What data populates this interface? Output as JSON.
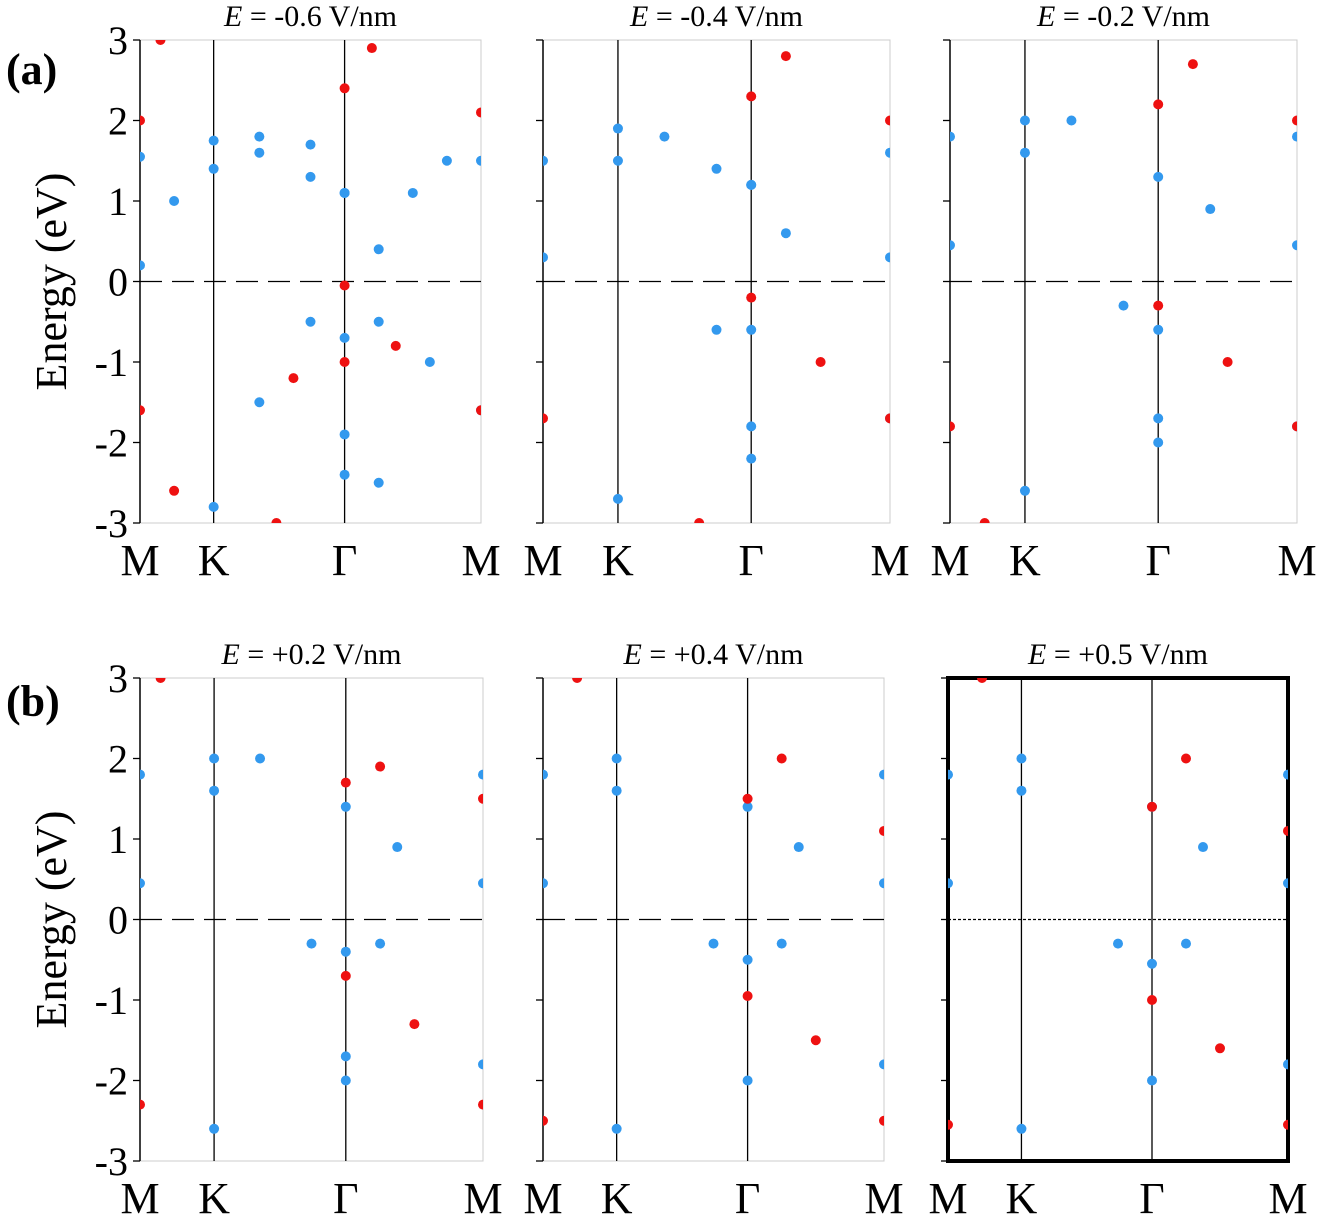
{
  "figure": {
    "row_labels": [
      "(a)",
      "(b)"
    ],
    "colors": {
      "blue": "#3399ee",
      "red": "#ee1111",
      "axis": "#000000",
      "frame": "#cccccc"
    }
  },
  "chart_data": [
    {
      "type": "scatter",
      "panel": "a1",
      "title_var": "E",
      "title_value": " = -0.6 V/nm",
      "ylabel": "Energy (eV)",
      "xticks": [
        "M",
        "K",
        "Γ",
        "M"
      ],
      "yticks": [
        "-3",
        "-2",
        "-1",
        "0",
        "1",
        "2",
        "3"
      ],
      "ylim": [
        -3,
        3
      ],
      "fermi_level": 0,
      "highlighted": false,
      "series": [
        {
          "color": "blue",
          "points": [
            [
              0,
              0.2
            ],
            [
              0.1,
              1.0
            ],
            [
              0.216,
              1.4
            ],
            [
              0.35,
              1.6
            ],
            [
              0.5,
              1.3
            ],
            [
              0.6,
              1.1
            ],
            [
              0.7,
              0.4
            ],
            [
              0.8,
              1.1
            ],
            [
              0.9,
              1.5
            ],
            [
              1,
              1.5
            ],
            [
              0,
              1.55
            ],
            [
              0.216,
              1.75
            ],
            [
              0.35,
              1.8
            ],
            [
              0.5,
              1.7
            ],
            [
              0.6,
              1.1
            ],
            [
              0.216,
              -2.8
            ],
            [
              0.35,
              -1.5
            ],
            [
              0.5,
              -0.5
            ],
            [
              0.6,
              -0.7
            ],
            [
              0.7,
              -0.5
            ],
            [
              0.85,
              -1.0
            ],
            [
              1,
              -1.6
            ],
            [
              0.6,
              -2.4
            ],
            [
              0.6,
              -1.9
            ],
            [
              0.7,
              -2.5
            ]
          ]
        },
        {
          "color": "red",
          "points": [
            [
              0,
              2.0
            ],
            [
              0.06,
              3.0
            ],
            [
              0.6,
              2.4
            ],
            [
              0.68,
              2.9
            ],
            [
              1,
              2.1
            ],
            [
              0.45,
              -1.2
            ],
            [
              0.6,
              -0.05
            ],
            [
              0.75,
              -0.8
            ],
            [
              1,
              -1.6
            ],
            [
              0,
              -1.6
            ],
            [
              0.1,
              -2.6
            ],
            [
              0.4,
              -3.0
            ],
            [
              0.6,
              -1.0
            ]
          ]
        }
      ]
    },
    {
      "type": "scatter",
      "panel": "a2",
      "title_var": "E",
      "title_value": " = -0.4 V/nm",
      "xticks": [
        "M",
        "K",
        "Γ",
        "M"
      ],
      "ylim": [
        -3,
        3
      ],
      "fermi_level": 0,
      "highlighted": false,
      "series": [
        {
          "color": "blue",
          "points": [
            [
              0,
              0.3
            ],
            [
              0.216,
              1.5
            ],
            [
              0.35,
              1.8
            ],
            [
              0.5,
              1.4
            ],
            [
              0.6,
              1.2
            ],
            [
              0.7,
              0.6
            ],
            [
              1,
              0.3
            ],
            [
              0,
              1.5
            ],
            [
              0.216,
              1.9
            ],
            [
              0.6,
              1.2
            ],
            [
              1,
              1.6
            ],
            [
              0.216,
              -2.7
            ],
            [
              0.5,
              -0.6
            ],
            [
              0.6,
              -0.6
            ],
            [
              1,
              -1.7
            ],
            [
              0.6,
              -2.2
            ],
            [
              0.6,
              -1.8
            ]
          ]
        },
        {
          "color": "red",
          "points": [
            [
              0.6,
              2.3
            ],
            [
              0.7,
              2.8
            ],
            [
              1,
              2.0
            ],
            [
              0.6,
              -0.2
            ],
            [
              0.8,
              -1.0
            ],
            [
              1,
              -1.7
            ],
            [
              0,
              -1.7
            ],
            [
              0.45,
              -3.0
            ]
          ]
        }
      ]
    },
    {
      "type": "scatter",
      "panel": "a3",
      "title_var": "E",
      "title_value": " = -0.2 V/nm",
      "xticks": [
        "M",
        "K",
        "Γ",
        "M"
      ],
      "ylim": [
        -3,
        3
      ],
      "fermi_level": 0,
      "highlighted": false,
      "series": [
        {
          "color": "blue",
          "points": [
            [
              0,
              0.45
            ],
            [
              0.216,
              1.6
            ],
            [
              0.35,
              2.0
            ],
            [
              0.6,
              1.3
            ],
            [
              0.75,
              0.9
            ],
            [
              1,
              0.45
            ],
            [
              0,
              1.8
            ],
            [
              0.216,
              2.0
            ],
            [
              1,
              1.8
            ],
            [
              0.216,
              -2.6
            ],
            [
              0.5,
              -0.3
            ],
            [
              0.6,
              -0.6
            ],
            [
              1,
              -1.8
            ],
            [
              0.6,
              -2.0
            ],
            [
              0.6,
              -1.7
            ]
          ]
        },
        {
          "color": "red",
          "points": [
            [
              0.6,
              2.2
            ],
            [
              0.7,
              2.7
            ],
            [
              1,
              2.0
            ],
            [
              0.6,
              -0.3
            ],
            [
              0.8,
              -1.0
            ],
            [
              1,
              -1.8
            ],
            [
              0,
              -1.8
            ],
            [
              0.1,
              -3.0
            ]
          ]
        }
      ]
    },
    {
      "type": "scatter",
      "panel": "b1",
      "title_var": "E",
      "title_value": " = +0.2 V/nm",
      "ylabel": "Energy (eV)",
      "xticks": [
        "M",
        "K",
        "Γ",
        "M"
      ],
      "yticks": [
        "-3",
        "-2",
        "-1",
        "0",
        "1",
        "2",
        "3"
      ],
      "ylim": [
        -3,
        3
      ],
      "fermi_level": 0,
      "highlighted": false,
      "series": [
        {
          "color": "blue",
          "points": [
            [
              0,
              0.45
            ],
            [
              0.216,
              1.6
            ],
            [
              0.35,
              2.0
            ],
            [
              0.6,
              1.4
            ],
            [
              0.75,
              0.9
            ],
            [
              1,
              0.45
            ],
            [
              0,
              1.8
            ],
            [
              0.216,
              2.0
            ],
            [
              1,
              1.8
            ],
            [
              0.216,
              -2.6
            ],
            [
              0.5,
              -0.3
            ],
            [
              0.6,
              -0.4
            ],
            [
              0.7,
              -0.3
            ],
            [
              1,
              -1.8
            ],
            [
              0.6,
              -2.0
            ],
            [
              0.6,
              -1.7
            ]
          ]
        },
        {
          "color": "red",
          "points": [
            [
              0.6,
              1.7
            ],
            [
              0.7,
              1.9
            ],
            [
              1,
              1.5
            ],
            [
              0.6,
              -0.7
            ],
            [
              0.8,
              -1.3
            ],
            [
              1,
              -2.3
            ],
            [
              0,
              -2.3
            ],
            [
              0.06,
              3.0
            ]
          ]
        }
      ]
    },
    {
      "type": "scatter",
      "panel": "b2",
      "title_var": "E",
      "title_value": " = +0.4 V/nm",
      "xticks": [
        "M",
        "K",
        "Γ",
        "M"
      ],
      "ylim": [
        -3,
        3
      ],
      "fermi_level": 0,
      "highlighted": false,
      "series": [
        {
          "color": "blue",
          "points": [
            [
              0,
              0.45
            ],
            [
              0.216,
              1.6
            ],
            [
              0.6,
              1.4
            ],
            [
              0.75,
              0.9
            ],
            [
              1,
              0.45
            ],
            [
              0,
              1.8
            ],
            [
              0.216,
              2.0
            ],
            [
              1,
              1.8
            ],
            [
              0.216,
              -2.6
            ],
            [
              0.5,
              -0.3
            ],
            [
              0.6,
              -0.5
            ],
            [
              0.7,
              -0.3
            ],
            [
              1,
              -1.8
            ],
            [
              0.6,
              -2.0
            ]
          ]
        },
        {
          "color": "red",
          "points": [
            [
              0.6,
              1.5
            ],
            [
              0.7,
              2.0
            ],
            [
              1,
              1.1
            ],
            [
              0.6,
              -0.95
            ],
            [
              0.8,
              -1.5
            ],
            [
              1,
              -2.5
            ],
            [
              0,
              -2.5
            ],
            [
              0.1,
              3.0
            ]
          ]
        }
      ]
    },
    {
      "type": "scatter",
      "panel": "b3",
      "title_var": "E",
      "title_value": " = +0.5 V/nm",
      "xticks": [
        "M",
        "K",
        "Γ",
        "M"
      ],
      "ylim": [
        -3,
        3
      ],
      "fermi_level": 0,
      "highlighted": true,
      "series": [
        {
          "color": "blue",
          "points": [
            [
              0,
              0.45
            ],
            [
              0.216,
              1.6
            ],
            [
              0.6,
              1.4
            ],
            [
              0.75,
              0.9
            ],
            [
              1,
              0.45
            ],
            [
              0,
              1.8
            ],
            [
              0.216,
              2.0
            ],
            [
              1,
              1.8
            ],
            [
              0.216,
              -2.6
            ],
            [
              0.5,
              -0.3
            ],
            [
              0.6,
              -0.55
            ],
            [
              0.7,
              -0.3
            ],
            [
              1,
              -1.8
            ],
            [
              0.6,
              -2.0
            ]
          ]
        },
        {
          "color": "red",
          "points": [
            [
              0.6,
              1.4
            ],
            [
              0.7,
              2.0
            ],
            [
              1,
              1.1
            ],
            [
              0.6,
              -1.0
            ],
            [
              0.8,
              -1.6
            ],
            [
              1,
              -2.55
            ],
            [
              0,
              -2.55
            ],
            [
              0.1,
              3.0
            ]
          ]
        }
      ]
    }
  ]
}
